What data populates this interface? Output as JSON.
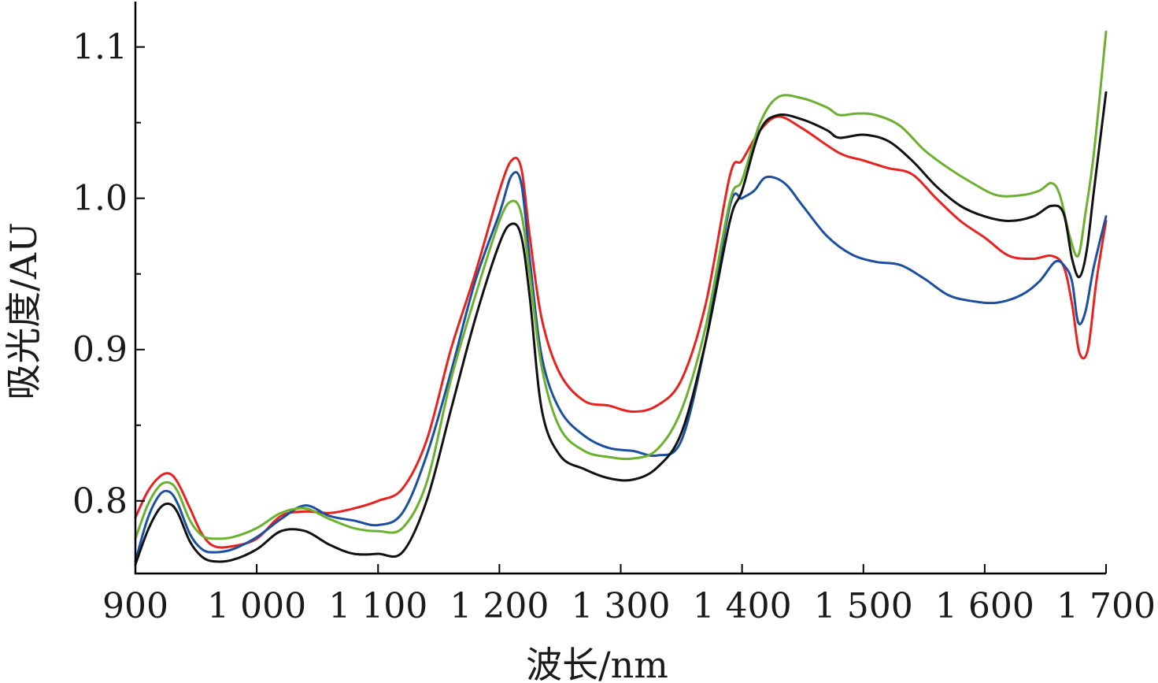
{
  "chart_data": {
    "type": "line",
    "title": "",
    "xlabel": "波长/nm",
    "ylabel": "吸光度/AU",
    "xlim": [
      900,
      1700
    ],
    "ylim": [
      0.752,
      1.13
    ],
    "x_ticks": [
      900,
      1000,
      1100,
      1200,
      1300,
      1400,
      1500,
      1600,
      1700
    ],
    "x_tick_labels": [
      "900",
      "1 000",
      "1 100",
      "1 200",
      "1 300",
      "1 400",
      "1 500",
      "1 600",
      "1 700"
    ],
    "y_ticks": [
      0.8,
      0.9,
      1.0,
      1.1
    ],
    "y_tick_labels": [
      "0.8",
      "0.9",
      "1.0",
      "1.1"
    ],
    "y_minor_ticks": [
      0.85,
      0.95,
      1.05
    ],
    "grid": false,
    "legend": "none",
    "series": [
      {
        "color": "#e8231f",
        "x": [
          900,
          910,
          920,
          928,
          935,
          945,
          955,
          965,
          980,
          1000,
          1020,
          1040,
          1060,
          1080,
          1100,
          1120,
          1140,
          1160,
          1180,
          1200,
          1210,
          1218,
          1225,
          1235,
          1250,
          1270,
          1290,
          1310,
          1330,
          1350,
          1370,
          1390,
          1400,
          1415,
          1430,
          1450,
          1480,
          1500,
          1520,
          1540,
          1560,
          1580,
          1600,
          1620,
          1640,
          1655,
          1665,
          1672,
          1678,
          1685,
          1692,
          1700
        ],
        "y": [
          0.789,
          0.806,
          0.816,
          0.818,
          0.812,
          0.795,
          0.778,
          0.77,
          0.77,
          0.775,
          0.79,
          0.793,
          0.792,
          0.795,
          0.8,
          0.808,
          0.84,
          0.9,
          0.95,
          1.005,
          1.025,
          1.02,
          0.975,
          0.92,
          0.884,
          0.866,
          0.863,
          0.859,
          0.863,
          0.88,
          0.93,
          1.015,
          1.025,
          1.045,
          1.054,
          1.046,
          1.03,
          1.025,
          1.02,
          1.016,
          1.0,
          0.985,
          0.974,
          0.962,
          0.96,
          0.962,
          0.955,
          0.93,
          0.898,
          0.9,
          0.945,
          0.985
        ]
      },
      {
        "color": "#1c4fa0",
        "x": [
          900,
          910,
          920,
          928,
          935,
          945,
          955,
          965,
          980,
          1000,
          1020,
          1040,
          1060,
          1080,
          1100,
          1120,
          1140,
          1160,
          1180,
          1200,
          1210,
          1218,
          1225,
          1235,
          1250,
          1270,
          1290,
          1310,
          1330,
          1350,
          1370,
          1390,
          1400,
          1410,
          1420,
          1435,
          1450,
          1470,
          1490,
          1510,
          1530,
          1550,
          1570,
          1590,
          1610,
          1630,
          1645,
          1658,
          1666,
          1672,
          1677,
          1683,
          1690,
          1700
        ],
        "y": [
          0.76,
          0.788,
          0.804,
          0.806,
          0.798,
          0.778,
          0.768,
          0.766,
          0.768,
          0.776,
          0.788,
          0.797,
          0.79,
          0.787,
          0.784,
          0.792,
          0.83,
          0.885,
          0.945,
          0.99,
          1.015,
          1.01,
          0.96,
          0.895,
          0.86,
          0.843,
          0.835,
          0.833,
          0.83,
          0.84,
          0.905,
          0.995,
          1.0,
          1.005,
          1.014,
          1.01,
          0.995,
          0.975,
          0.963,
          0.958,
          0.956,
          0.947,
          0.936,
          0.932,
          0.931,
          0.936,
          0.945,
          0.958,
          0.955,
          0.945,
          0.918,
          0.925,
          0.955,
          0.988
        ]
      },
      {
        "color": "#6bb02f",
        "x": [
          900,
          910,
          920,
          928,
          935,
          945,
          955,
          965,
          980,
          1000,
          1020,
          1040,
          1060,
          1080,
          1100,
          1120,
          1140,
          1160,
          1180,
          1200,
          1210,
          1218,
          1225,
          1235,
          1250,
          1270,
          1290,
          1310,
          1330,
          1350,
          1370,
          1390,
          1400,
          1415,
          1430,
          1450,
          1470,
          1480,
          1495,
          1510,
          1530,
          1550,
          1570,
          1590,
          1610,
          1630,
          1645,
          1655,
          1662,
          1670,
          1677,
          1683,
          1690,
          1700
        ],
        "y": [
          0.775,
          0.797,
          0.81,
          0.812,
          0.806,
          0.787,
          0.777,
          0.775,
          0.776,
          0.782,
          0.792,
          0.795,
          0.788,
          0.782,
          0.78,
          0.782,
          0.812,
          0.88,
          0.935,
          0.985,
          0.998,
          0.99,
          0.95,
          0.888,
          0.848,
          0.833,
          0.829,
          0.828,
          0.834,
          0.86,
          0.915,
          0.998,
          1.012,
          1.05,
          1.067,
          1.066,
          1.06,
          1.055,
          1.056,
          1.055,
          1.048,
          1.032,
          1.02,
          1.01,
          1.002,
          1.002,
          1.005,
          1.01,
          1.002,
          0.975,
          0.962,
          0.99,
          1.03,
          1.11
        ]
      },
      {
        "color": "#111111",
        "x": [
          900,
          910,
          920,
          928,
          935,
          945,
          955,
          965,
          980,
          1000,
          1020,
          1040,
          1060,
          1080,
          1100,
          1120,
          1140,
          1160,
          1180,
          1200,
          1210,
          1218,
          1225,
          1235,
          1250,
          1270,
          1290,
          1310,
          1330,
          1350,
          1370,
          1390,
          1400,
          1415,
          1430,
          1450,
          1470,
          1480,
          1500,
          1520,
          1540,
          1560,
          1580,
          1600,
          1620,
          1640,
          1655,
          1665,
          1672,
          1678,
          1684,
          1690,
          1700
        ],
        "y": [
          0.758,
          0.78,
          0.795,
          0.798,
          0.792,
          0.773,
          0.763,
          0.76,
          0.761,
          0.768,
          0.78,
          0.78,
          0.771,
          0.765,
          0.765,
          0.766,
          0.8,
          0.86,
          0.92,
          0.97,
          0.983,
          0.975,
          0.935,
          0.86,
          0.83,
          0.821,
          0.815,
          0.814,
          0.822,
          0.845,
          0.905,
          0.985,
          1.005,
          1.045,
          1.055,
          1.052,
          1.045,
          1.04,
          1.042,
          1.038,
          1.025,
          1.008,
          0.995,
          0.988,
          0.985,
          0.988,
          0.995,
          0.99,
          0.96,
          0.948,
          0.965,
          1.005,
          1.07
        ]
      }
    ]
  }
}
